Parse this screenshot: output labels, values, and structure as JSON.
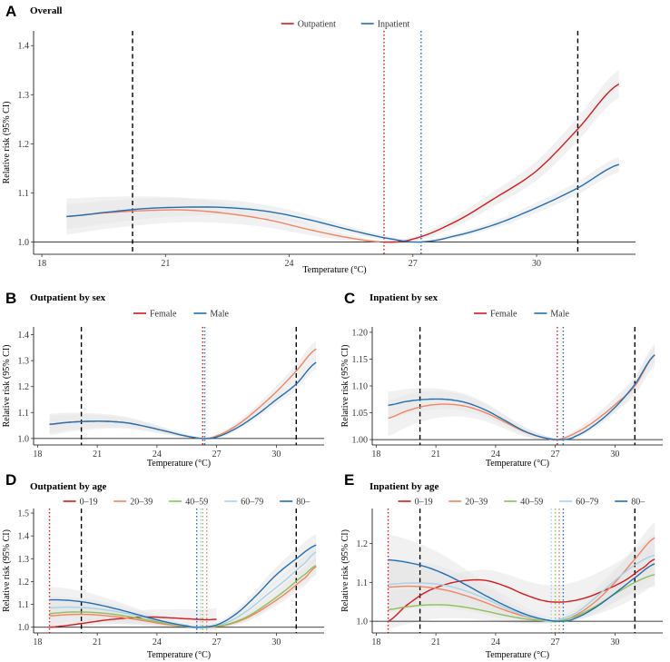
{
  "colors": {
    "red": "#d7191c",
    "orange": "#f4845f",
    "green": "#8fc055",
    "lightblue": "#a6d3e8",
    "blue": "#1f6fb2",
    "ci_fill": "#e6e6e6",
    "refline": "#000000"
  },
  "chart_data": [
    {
      "id": "A",
      "type": "line",
      "letter": "A",
      "title": "Overall",
      "xlabel": "Temperature (°C)",
      "ylabel": "Relative risk (95% CI)",
      "xlim": [
        17.8,
        32.4
      ],
      "ylim": [
        0.975,
        1.43
      ],
      "xticks": [
        18,
        21,
        24,
        27,
        30
      ],
      "yticks": [
        1.0,
        1.1,
        1.2,
        1.3,
        1.4
      ],
      "ytick_labels": [
        "1.0",
        "1.1",
        "1.2",
        "1.3",
        "1.4"
      ],
      "dashed_x": [
        20.2,
        31.0
      ],
      "legend": [
        {
          "name": "Outpatient",
          "color": "red"
        },
        {
          "name": "Inpatient",
          "color": "blue"
        }
      ],
      "dotted": [
        {
          "x": 26.3,
          "color": "red"
        },
        {
          "x": 27.2,
          "color": "blue"
        }
      ],
      "series": [
        {
          "name": "Outpatient",
          "color": "red",
          "cold_color": "orange",
          "mmt": 26.3,
          "ci": 0.022,
          "x": [
            18.6,
            19.5,
            20.5,
            21.5,
            22.5,
            23.5,
            24.5,
            25.5,
            26.3,
            27.0,
            28.0,
            29.0,
            30.0,
            31.0,
            32.0
          ],
          "y": [
            1.052,
            1.059,
            1.064,
            1.065,
            1.058,
            1.045,
            1.025,
            1.008,
            1.0,
            1.006,
            1.04,
            1.09,
            1.145,
            1.23,
            1.322
          ]
        },
        {
          "name": "Inpatient",
          "color": "blue",
          "mmt": 27.2,
          "ci": 0.015,
          "x": [
            18.6,
            19.5,
            20.5,
            21.5,
            22.5,
            23.5,
            24.5,
            25.5,
            26.5,
            27.2,
            28.0,
            29.0,
            30.0,
            31.0,
            32.0
          ],
          "y": [
            1.052,
            1.06,
            1.068,
            1.071,
            1.07,
            1.062,
            1.045,
            1.024,
            1.006,
            1.0,
            1.012,
            1.036,
            1.07,
            1.11,
            1.158
          ]
        }
      ]
    },
    {
      "id": "B",
      "type": "line",
      "letter": "B",
      "title": "Outpatient by sex",
      "xlabel": "Temperature (°C)",
      "ylabel": "Relative risk (95% CI)",
      "xlim": [
        17.8,
        32.4
      ],
      "ylim": [
        0.975,
        1.43
      ],
      "xticks": [
        18,
        21,
        24,
        27,
        30
      ],
      "yticks": [
        1.0,
        1.1,
        1.2,
        1.3,
        1.4
      ],
      "ytick_labels": [
        "1.0",
        "1.1",
        "1.2",
        "1.3",
        "1.4"
      ],
      "dashed_x": [
        20.2,
        31.0
      ],
      "legend": [
        {
          "name": "Female",
          "color": "red"
        },
        {
          "name": "Male",
          "color": "blue"
        }
      ],
      "dotted": [
        {
          "x": 26.3,
          "color": "red"
        },
        {
          "x": 26.4,
          "color": "blue"
        }
      ],
      "series": [
        {
          "name": "Female",
          "color": "orange",
          "mmt": 26.3,
          "ci": 0.025,
          "x": [
            18.6,
            19.5,
            20.5,
            21.5,
            22.5,
            23.5,
            24.5,
            25.5,
            26.3,
            27.0,
            28.0,
            29.0,
            30.0,
            31.0,
            32.0
          ],
          "y": [
            1.054,
            1.062,
            1.066,
            1.066,
            1.06,
            1.045,
            1.027,
            1.009,
            1.0,
            1.01,
            1.05,
            1.11,
            1.18,
            1.26,
            1.345
          ]
        },
        {
          "name": "Male",
          "color": "blue",
          "mmt": 26.4,
          "ci": 0.02,
          "x": [
            18.6,
            19.5,
            20.5,
            21.5,
            22.5,
            23.5,
            24.5,
            25.5,
            26.4,
            27.0,
            28.0,
            29.0,
            30.0,
            31.0,
            32.0
          ],
          "y": [
            1.055,
            1.062,
            1.066,
            1.066,
            1.06,
            1.045,
            1.027,
            1.009,
            1.0,
            1.006,
            1.04,
            1.09,
            1.15,
            1.21,
            1.293
          ]
        }
      ]
    },
    {
      "id": "C",
      "type": "line",
      "letter": "C",
      "title": "Inpatient by sex",
      "xlabel": "Temperature (°C)",
      "ylabel": "Relative risk (95% CI)",
      "xlim": [
        17.8,
        32.4
      ],
      "ylim": [
        0.99,
        1.21
      ],
      "xticks": [
        18,
        21,
        24,
        27,
        30
      ],
      "yticks": [
        1.0,
        1.05,
        1.1,
        1.15,
        1.2
      ],
      "ytick_labels": [
        "1.00",
        "1.05",
        "1.10",
        "1.15",
        "1.20"
      ],
      "dashed_x": [
        20.2,
        31.0
      ],
      "legend": [
        {
          "name": "Female",
          "color": "red"
        },
        {
          "name": "Male",
          "color": "blue"
        }
      ],
      "dotted": [
        {
          "x": 27.1,
          "color": "red"
        },
        {
          "x": 27.4,
          "color": "blue"
        }
      ],
      "series": [
        {
          "name": "Female",
          "color": "orange",
          "mmt": 27.1,
          "ci": 0.02,
          "x": [
            18.6,
            19.5,
            20.5,
            21.5,
            22.5,
            23.5,
            24.5,
            25.5,
            26.5,
            27.1,
            28.0,
            29.0,
            30.0,
            31.0,
            32.0
          ],
          "y": [
            1.04,
            1.053,
            1.063,
            1.066,
            1.062,
            1.05,
            1.032,
            1.014,
            1.003,
            1.0,
            1.012,
            1.035,
            1.065,
            1.1,
            1.158
          ]
        },
        {
          "name": "Male",
          "color": "blue",
          "mmt": 27.4,
          "ci": 0.015,
          "x": [
            18.6,
            19.5,
            20.5,
            21.5,
            22.5,
            23.5,
            24.5,
            25.5,
            26.5,
            27.4,
            28.0,
            29.0,
            30.0,
            31.0,
            32.0
          ],
          "y": [
            1.064,
            1.071,
            1.075,
            1.075,
            1.069,
            1.055,
            1.035,
            1.015,
            1.003,
            1.0,
            1.006,
            1.028,
            1.06,
            1.103,
            1.158
          ]
        }
      ]
    },
    {
      "id": "D",
      "type": "line",
      "letter": "D",
      "title": "Outpatient by age",
      "xlabel": "Temperature (°C)",
      "ylabel": "Relative risk (95% CI)",
      "xlim": [
        17.8,
        32.4
      ],
      "ylim": [
        0.975,
        1.52
      ],
      "xticks": [
        18,
        21,
        24,
        27,
        30
      ],
      "yticks": [
        1.0,
        1.1,
        1.2,
        1.3,
        1.4,
        1.5
      ],
      "ytick_labels": [
        "1.0",
        "1.1",
        "1.2",
        "1.3",
        "1.4",
        "1.5"
      ],
      "dashed_x": [
        20.2,
        31.0
      ],
      "legend": [
        {
          "name": "0–19",
          "color": "red"
        },
        {
          "name": "20–39",
          "color": "orange"
        },
        {
          "name": "40–59",
          "color": "green"
        },
        {
          "name": "60–79",
          "color": "lightblue"
        },
        {
          "name": "80–",
          "color": "blue"
        }
      ],
      "dotted": [
        {
          "x": 18.6,
          "color": "red"
        },
        {
          "x": 26.5,
          "color": "orange"
        },
        {
          "x": 26.3,
          "color": "green"
        },
        {
          "x": 26.2,
          "color": "lightblue"
        },
        {
          "x": 26.0,
          "color": "blue"
        }
      ],
      "series": [
        {
          "name": "0–19",
          "color": "red",
          "ci": 0.03,
          "x": [
            18.6,
            19.5,
            20.5,
            21.5,
            22.5,
            23.5,
            24.5,
            25.5,
            26.5,
            27.0
          ],
          "y": [
            1.0,
            1.008,
            1.02,
            1.032,
            1.04,
            1.045,
            1.042,
            1.037,
            1.033,
            1.035
          ]
        },
        {
          "name": "20–39",
          "color": "orange",
          "ci": 0.03,
          "x": [
            18.6,
            19.5,
            20.5,
            21.5,
            22.5,
            23.5,
            24.5,
            25.5,
            26.5,
            27.5,
            28.5,
            29.5,
            30.5,
            31.5,
            32.0
          ],
          "y": [
            1.05,
            1.055,
            1.056,
            1.05,
            1.04,
            1.026,
            1.012,
            1.003,
            1.0,
            1.01,
            1.04,
            1.09,
            1.15,
            1.22,
            1.265
          ]
        },
        {
          "name": "40–59",
          "color": "green",
          "ci": 0.03,
          "x": [
            18.6,
            19.5,
            20.5,
            21.5,
            22.5,
            23.5,
            24.5,
            25.5,
            26.3,
            27.5,
            28.5,
            29.5,
            30.5,
            31.5,
            32.0
          ],
          "y": [
            1.06,
            1.066,
            1.066,
            1.06,
            1.048,
            1.032,
            1.016,
            1.004,
            1.0,
            1.012,
            1.045,
            1.1,
            1.165,
            1.235,
            1.27
          ]
        },
        {
          "name": "60–79",
          "color": "lightblue",
          "ci": 0.03,
          "x": [
            18.6,
            19.5,
            20.5,
            21.5,
            22.5,
            23.5,
            24.5,
            25.5,
            26.2,
            27.5,
            28.5,
            29.5,
            30.5,
            31.5,
            32.0
          ],
          "y": [
            1.085,
            1.088,
            1.085,
            1.075,
            1.06,
            1.04,
            1.02,
            1.005,
            1.0,
            1.02,
            1.07,
            1.14,
            1.21,
            1.285,
            1.33
          ]
        },
        {
          "name": "80–",
          "color": "blue",
          "ci": 0.035,
          "x": [
            18.6,
            19.5,
            20.5,
            21.5,
            22.5,
            23.5,
            24.5,
            25.5,
            26.0,
            27.0,
            28.0,
            29.0,
            30.0,
            31.0,
            32.0
          ],
          "y": [
            1.12,
            1.118,
            1.108,
            1.09,
            1.068,
            1.044,
            1.022,
            1.006,
            1.0,
            1.01,
            1.06,
            1.14,
            1.23,
            1.3,
            1.36
          ]
        }
      ]
    },
    {
      "id": "E",
      "type": "line",
      "letter": "E",
      "title": "Inpatient by age",
      "xlabel": "Temperature (°C)",
      "ylabel": "Relative risk (95% CI)",
      "xlim": [
        17.8,
        32.4
      ],
      "ylim": [
        0.97,
        1.29
      ],
      "xticks": [
        18,
        21,
        24,
        27,
        30
      ],
      "yticks": [
        1.0,
        1.1,
        1.2
      ],
      "ytick_labels": [
        "1.0",
        "1.1",
        "1.2"
      ],
      "dashed_x": [
        20.2,
        31.0
      ],
      "legend": [
        {
          "name": "0–19",
          "color": "red"
        },
        {
          "name": "20–39",
          "color": "orange"
        },
        {
          "name": "40–59",
          "color": "green"
        },
        {
          "name": "60–79",
          "color": "lightblue"
        },
        {
          "name": "80–",
          "color": "blue"
        }
      ],
      "dotted": [
        {
          "x": 18.6,
          "color": "red"
        },
        {
          "x": 26.8,
          "color": "lightblue"
        },
        {
          "x": 27.0,
          "color": "green"
        },
        {
          "x": 27.2,
          "color": "orange"
        },
        {
          "x": 27.4,
          "color": "blue"
        }
      ],
      "series": [
        {
          "name": "0–19",
          "color": "red",
          "ci": 0.04,
          "x": [
            18.6,
            19.5,
            20.5,
            21.5,
            22.5,
            23.5,
            24.5,
            25.5,
            26.5,
            27.5,
            28.5,
            29.5,
            30.5,
            31.5,
            32.0
          ],
          "y": [
            1.0,
            1.04,
            1.075,
            1.095,
            1.105,
            1.105,
            1.09,
            1.068,
            1.052,
            1.05,
            1.06,
            1.08,
            1.105,
            1.14,
            1.16
          ]
        },
        {
          "name": "20–39",
          "color": "orange",
          "ci": 0.04,
          "x": [
            18.6,
            19.5,
            20.5,
            21.5,
            22.5,
            23.5,
            24.5,
            25.5,
            26.5,
            27.2,
            28.0,
            29.0,
            30.0,
            31.0,
            32.0
          ],
          "y": [
            1.088,
            1.09,
            1.088,
            1.08,
            1.066,
            1.048,
            1.028,
            1.012,
            1.003,
            1.0,
            1.015,
            1.05,
            1.1,
            1.16,
            1.215
          ]
        },
        {
          "name": "40–59",
          "color": "green",
          "ci": 0.03,
          "x": [
            18.6,
            19.5,
            20.5,
            21.5,
            22.5,
            23.5,
            24.5,
            25.5,
            26.5,
            27.0,
            28.0,
            29.0,
            30.0,
            31.0,
            32.0
          ],
          "y": [
            1.03,
            1.037,
            1.042,
            1.042,
            1.036,
            1.026,
            1.015,
            1.006,
            1.001,
            1.0,
            1.012,
            1.038,
            1.07,
            1.1,
            1.12
          ]
        },
        {
          "name": "60–79",
          "color": "lightblue",
          "ci": 0.04,
          "x": [
            18.6,
            19.5,
            20.5,
            21.5,
            22.5,
            23.5,
            24.5,
            25.5,
            26.5,
            26.8,
            28.0,
            29.0,
            30.0,
            31.0,
            32.0
          ],
          "y": [
            1.095,
            1.098,
            1.098,
            1.092,
            1.078,
            1.058,
            1.034,
            1.014,
            1.003,
            1.0,
            1.02,
            1.06,
            1.105,
            1.145,
            1.17
          ]
        },
        {
          "name": "80–",
          "color": "blue",
          "ci": 0.04,
          "x": [
            18.6,
            19.5,
            20.5,
            21.5,
            22.5,
            23.5,
            24.5,
            25.5,
            26.5,
            27.4,
            28.0,
            29.0,
            30.0,
            31.0,
            32.0
          ],
          "y": [
            1.158,
            1.152,
            1.14,
            1.12,
            1.094,
            1.066,
            1.04,
            1.018,
            1.004,
            1.0,
            1.008,
            1.035,
            1.072,
            1.112,
            1.148
          ]
        }
      ]
    }
  ]
}
